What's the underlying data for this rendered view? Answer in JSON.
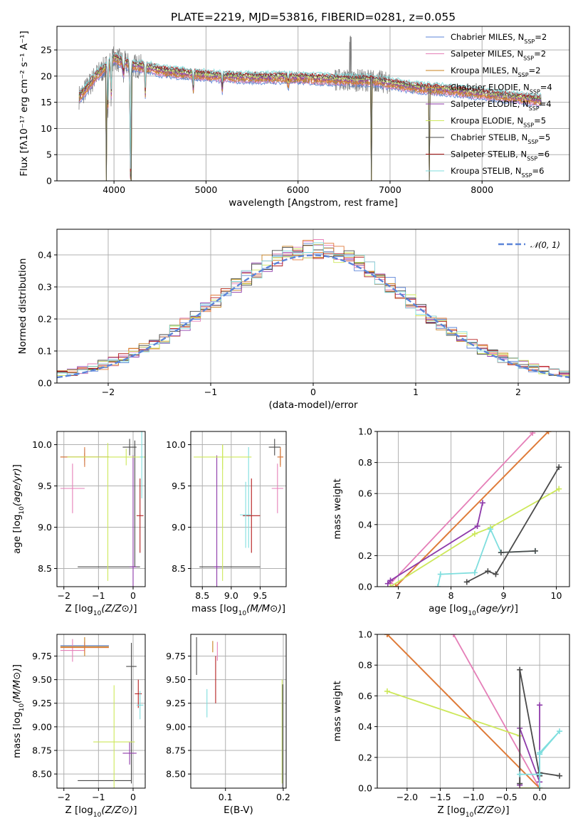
{
  "colors": {
    "Chabrier MILES": "#5b84d8",
    "Salpeter MILES": "#e57fb8",
    "Kroupa MILES": "#c8801e",
    "Chabrier ELODIE": "#e07a3a",
    "Salpeter ELODIE": "#8e3aaa",
    "Kroupa ELODIE": "#cde85a",
    "Chabrier STELIB": "#4a4a4a",
    "Salpeter STELIB": "#b41e1e",
    "Kroupa STELIB": "#7fdede"
  },
  "chart_data": [
    {
      "id": "spectrum",
      "type": "line",
      "title": "PLATE=2219, MJD=53816, FIBERID=0281, z=0.055",
      "xlabel": "wavelength [Angstrom, rest frame]",
      "ylabel": "Flux [fλ10⁻¹⁷ erg cm⁻² s⁻¹ A⁻¹]",
      "xlim": [
        3380,
        8950
      ],
      "ylim": [
        0,
        29.5
      ],
      "xticks": [
        4000,
        5000,
        6000,
        7000,
        8000
      ],
      "yticks": [
        0,
        5,
        10,
        15,
        20,
        25
      ],
      "data_series": {
        "name": "",
        "color": "#808080"
      },
      "continuum_x": [
        3620,
        3700,
        3800,
        3900,
        4000,
        4100,
        4200,
        4300,
        4400,
        4500,
        4700,
        5000,
        5300,
        5600,
        6000,
        6300,
        6600,
        6800,
        7000,
        7200,
        7400,
        7600,
        7800,
        8000,
        8200,
        8400,
        8600
      ],
      "continuum_y": [
        16.0,
        17.5,
        20.0,
        21.5,
        23.5,
        22.5,
        22.0,
        21.8,
        21.5,
        21.0,
        20.6,
        20.1,
        19.8,
        19.7,
        19.7,
        19.4,
        19.2,
        19.2,
        18.6,
        18.0,
        17.6,
        17.4,
        17.0,
        16.6,
        16.2,
        15.8,
        15.4
      ],
      "absorption_lines": [
        {
          "x": 3934,
          "depth": 8.0
        },
        {
          "x": 3969,
          "depth": 7.0
        },
        {
          "x": 4102,
          "depth": 3.0
        },
        {
          "x": 4178,
          "depth": 21.0
        },
        {
          "x": 4340,
          "depth": 5.0
        },
        {
          "x": 4861,
          "depth": 3.0
        },
        {
          "x": 5175,
          "depth": 2.5
        },
        {
          "x": 5893,
          "depth": 2.0
        }
      ],
      "model_gaps": [
        {
          "x": 3918,
          "bottom": 0
        },
        {
          "x": 4184,
          "bottom": 0
        },
        {
          "x": 6800,
          "bottom": 0
        },
        {
          "x": 7430,
          "bottom": 0
        }
      ],
      "legend": [
        {
          "name": "Chabrier MILES",
          "nssp": "2"
        },
        {
          "name": "Salpeter MILES",
          "nssp": "2"
        },
        {
          "name": "Kroupa MILES",
          "nssp": "2"
        },
        {
          "name": "Chabrier ELODIE",
          "nssp": "4"
        },
        {
          "name": "Salpeter ELODIE",
          "nssp": "4"
        },
        {
          "name": "Kroupa ELODIE",
          "nssp": "5"
        },
        {
          "name": "Chabrier STELIB",
          "nssp": "5"
        },
        {
          "name": "Salpeter STELIB",
          "nssp": "6"
        },
        {
          "name": "Kroupa STELIB",
          "nssp": "6"
        }
      ],
      "legend_prefix": "N",
      "legend_sub": "SSP"
    },
    {
      "id": "residuals",
      "type": "histogram",
      "xlabel": "(data-model)/error",
      "ylabel": "Normed distribution",
      "xlim": [
        -2.5,
        2.5
      ],
      "ylim": [
        0,
        0.48
      ],
      "xticks": [
        -2,
        -1,
        0,
        1,
        2
      ],
      "yticks": [
        0.0,
        0.1,
        0.2,
        0.3,
        0.4
      ],
      "bin_width": 0.1,
      "normal_legend": "𝒩(0, 1)",
      "normal_color": "#5b84d8"
    },
    {
      "id": "age-vs-Z",
      "type": "errorbar",
      "xlabel": "Z [log10(Z/Z⊙)]",
      "ylabel": "age  [log10(age/yr)]",
      "xlim": [
        -2.2,
        0.35
      ],
      "ylim": [
        8.28,
        10.16
      ],
      "xticks": [
        -2,
        -1,
        0
      ],
      "yticks": [
        8.5,
        9.0,
        9.5,
        10.0
      ],
      "points": [
        {
          "model": "Chabrier MILES",
          "x": -1.4,
          "xe": 0.7,
          "y": 9.85,
          "ye": 0.1
        },
        {
          "model": "Salpeter MILES",
          "x": -1.75,
          "xe": 0.35,
          "y": 9.47,
          "ye": 0.3
        },
        {
          "model": "Kroupa MILES",
          "x": -1.4,
          "xe": 0.7,
          "y": 9.85,
          "ye": 0.05
        },
        {
          "model": "Chabrier ELODIE",
          "x": -1.4,
          "xe": 0.7,
          "y": 9.85,
          "ye": 0.12
        },
        {
          "model": "Salpeter ELODIE",
          "x": 0.0,
          "xe": 0.1,
          "y": 8.52,
          "ye": 1.35
        },
        {
          "model": "Kroupa ELODIE",
          "x": -0.2,
          "xe": 1.7,
          "y": 9.85,
          "ye": 0.1
        },
        {
          "model": "Chabrier STELIB",
          "x": -0.1,
          "xe": 0.2,
          "y": 9.97,
          "ye": 0.1
        },
        {
          "model": "Salpeter STELIB",
          "x": 0.2,
          "xe": 0.1,
          "y": 9.14,
          "ye": 0.45
        },
        {
          "model": "Kroupa STELIB",
          "x": 0.25,
          "xe": 0.05,
          "y": 9.85,
          "ye": 0.5
        }
      ],
      "extra_segments": [
        {
          "model": "Chabrier STELIB",
          "x1": -1.6,
          "y1": 8.52,
          "x2": 0.2,
          "y2": 8.52
        },
        {
          "model": "Kroupa ELODIE",
          "x1": -0.73,
          "y1": 8.35,
          "x2": -0.73,
          "y2": 10.02
        },
        {
          "model": "Chabrier STELIB",
          "x1": 0.05,
          "y1": 8.52,
          "x2": 0.05,
          "y2": 10.05
        }
      ]
    },
    {
      "id": "age-vs-mass",
      "type": "errorbar",
      "xlabel": "mass [log10(M/M⊙)]",
      "ylabel": "",
      "xlim": [
        8.3,
        9.95
      ],
      "ylim": [
        8.28,
        10.16
      ],
      "xticks": [
        8.5,
        9.0,
        9.5
      ],
      "yticks": [
        8.5,
        9.0,
        9.5,
        10.0
      ],
      "points": [
        {
          "model": "Chabrier MILES",
          "x": 9.85,
          "xe": 0.05,
          "y": 9.85,
          "ye": 0.1
        },
        {
          "model": "Salpeter MILES",
          "x": 9.8,
          "xe": 0.1,
          "y": 9.47,
          "ye": 0.3
        },
        {
          "model": "Kroupa MILES",
          "x": 9.85,
          "xe": 0.05,
          "y": 9.85,
          "ye": 0.1
        },
        {
          "model": "Chabrier ELODIE",
          "x": 9.85,
          "xe": 0.05,
          "y": 9.85,
          "ye": 0.12
        },
        {
          "model": "Salpeter ELODIE",
          "x": 8.75,
          "xe": 0.05,
          "y": 8.52,
          "ye": 1.35
        },
        {
          "model": "Kroupa ELODIE",
          "x": 8.85,
          "xe": 0.5,
          "y": 9.85,
          "ye": 0.15
        },
        {
          "model": "Chabrier STELIB",
          "x": 9.75,
          "xe": 0.1,
          "y": 9.97,
          "ye": 0.1
        },
        {
          "model": "Salpeter STELIB",
          "x": 9.35,
          "xe": 0.15,
          "y": 9.14,
          "ye": 0.45
        },
        {
          "model": "Kroupa STELIB",
          "x": 9.25,
          "xe": 0.1,
          "y": 9.15,
          "ye": 0.4
        }
      ],
      "extra_segments": [
        {
          "model": "Chabrier STELIB",
          "x1": 8.45,
          "y1": 8.52,
          "x2": 9.5,
          "y2": 8.52
        },
        {
          "model": "Kroupa ELODIE",
          "x1": 8.85,
          "y1": 8.35,
          "x2": 8.85,
          "y2": 10.0
        },
        {
          "model": "Kroupa STELIB",
          "x1": 9.3,
          "y1": 8.75,
          "x2": 9.3,
          "y2": 9.97
        }
      ]
    },
    {
      "id": "weight-vs-age",
      "type": "line",
      "xlabel": "age  [log10(age/yr)]",
      "ylabel": "mass weight",
      "xlim": [
        6.6,
        10.25
      ],
      "ylim": [
        0,
        1.0
      ],
      "xticks": [
        7,
        8,
        9,
        10
      ],
      "yticks": [
        0.0,
        0.2,
        0.4,
        0.6,
        0.8,
        1.0
      ],
      "series": [
        {
          "model": "Salpeter MILES",
          "x": [
            6.85,
            9.55
          ],
          "y": [
            0.02,
            0.99
          ]
        },
        {
          "model": "Kroupa MILES",
          "x": [
            6.95,
            9.85
          ],
          "y": [
            0.0,
            1.0
          ]
        },
        {
          "model": "Chabrier ELODIE",
          "x": [
            6.95,
            9.85
          ],
          "y": [
            0.0,
            1.0
          ]
        },
        {
          "model": "Salpeter ELODIE",
          "x": [
            6.8,
            6.85,
            8.5,
            8.6
          ],
          "y": [
            0.02,
            0.04,
            0.39,
            0.54
          ]
        },
        {
          "model": "Kroupa ELODIE",
          "x": [
            6.85,
            8.45,
            8.75,
            10.05
          ],
          "y": [
            0.0,
            0.34,
            0.38,
            0.63
          ]
        },
        {
          "model": "Chabrier STELIB",
          "x": [
            8.3,
            8.7,
            8.85,
            10.05
          ],
          "y": [
            0.03,
            0.1,
            0.08,
            0.77
          ]
        },
        {
          "model": "Kroupa STELIB",
          "x": [
            7.75,
            7.8,
            8.45,
            8.75,
            8.95,
            9.6
          ],
          "y": [
            0.0,
            0.08,
            0.09,
            0.37,
            0.22,
            0.23
          ]
        },
        {
          "model": "Chabrier STELIB",
          "x": [
            8.95,
            9.6
          ],
          "y": [
            0.22,
            0.23
          ]
        }
      ]
    },
    {
      "id": "mass-vs-Z",
      "type": "errorbar",
      "xlabel": "Z [log10(Z/Z⊙)]",
      "ylabel": "mass [log10(M/M⊙)]",
      "xlim": [
        -2.2,
        0.35
      ],
      "ylim": [
        8.35,
        9.98
      ],
      "xticks": [
        -2,
        -1,
        0
      ],
      "yticks": [
        8.5,
        8.75,
        9.0,
        9.25,
        9.5,
        9.75
      ],
      "points": [
        {
          "model": "Chabrier MILES",
          "x": -1.4,
          "xe": 0.7,
          "y": 9.86,
          "ye": 0.04
        },
        {
          "model": "Salpeter MILES",
          "x": -1.75,
          "xe": 0.35,
          "y": 9.81,
          "ye": 0.12
        },
        {
          "model": "Kroupa MILES",
          "x": -1.4,
          "xe": 0.7,
          "y": 9.85,
          "ye": 0.1
        },
        {
          "model": "Chabrier ELODIE",
          "x": -1.4,
          "xe": 0.7,
          "y": 9.84,
          "ye": 0.06
        },
        {
          "model": "Salpeter ELODIE",
          "x": -0.1,
          "xe": 0.2,
          "y": 8.72,
          "ye": 0.12
        },
        {
          "model": "Kroupa ELODIE",
          "x": -0.55,
          "xe": 0.6,
          "y": 8.84,
          "ye": 0.6
        },
        {
          "model": "Chabrier STELIB",
          "x": -0.05,
          "xe": 0.15,
          "y": 9.64,
          "ye": 0.25
        },
        {
          "model": "Salpeter STELIB",
          "x": 0.15,
          "xe": 0.1,
          "y": 9.35,
          "ye": 0.15
        },
        {
          "model": "Kroupa STELIB",
          "x": 0.2,
          "xe": 0.1,
          "y": 9.23,
          "ye": 0.15
        }
      ],
      "extra_segments": [
        {
          "model": "Chabrier STELIB",
          "x1": -1.6,
          "y1": 8.43,
          "x2": -0.05,
          "y2": 8.43
        },
        {
          "model": "Chabrier STELIB",
          "x1": -0.05,
          "y1": 8.4,
          "x2": -0.05,
          "y2": 9.49
        }
      ]
    },
    {
      "id": "mass-vs-ebv",
      "type": "errorbar",
      "xlabel": "E(B-V)",
      "ylabel": "",
      "xlim": [
        0.04,
        0.205
      ],
      "ylim": [
        8.35,
        9.98
      ],
      "xticks": [
        0.1,
        0.2
      ],
      "yticks": [
        8.5,
        8.75,
        9.0,
        9.25,
        9.5,
        9.75
      ],
      "points": [
        {
          "model": "Chabrier STELIB",
          "x": 0.05,
          "xe": 0.0,
          "y": 9.75,
          "ye": 0.2
        },
        {
          "model": "Kroupa STELIB",
          "x": 0.068,
          "xe": 0.0,
          "y": 9.25,
          "ye": 0.15
        },
        {
          "model": "Kroupa MILES",
          "x": 0.078,
          "xe": 0.0,
          "y": 9.85,
          "ye": 0.06
        },
        {
          "model": "Salpeter STELIB",
          "x": 0.083,
          "xe": 0.0,
          "y": 9.5,
          "ye": 0.25
        },
        {
          "model": "Salpeter MILES",
          "x": 0.086,
          "xe": 0.0,
          "y": 9.8,
          "ye": 0.1
        },
        {
          "model": "Kroupa ELODIE",
          "x": 0.198,
          "xe": 0.0,
          "y": 8.95,
          "ye": 0.55
        },
        {
          "model": "Chabrier STELIB",
          "x": 0.199,
          "xe": 0.0,
          "y": 8.9,
          "ye": 0.55
        }
      ],
      "extra_segments": []
    },
    {
      "id": "weight-vs-Z",
      "type": "line",
      "xlabel": "Z [log10(Z/Z⊙)]",
      "ylabel": "mass weight",
      "xlim": [
        -2.45,
        0.45
      ],
      "ylim": [
        0,
        1.0
      ],
      "xticks": [
        -2.0,
        -1.5,
        -1.0,
        -0.5,
        0.0
      ],
      "yticks": [
        0.0,
        0.2,
        0.4,
        0.6,
        0.8,
        1.0
      ],
      "series": [
        {
          "model": "Salpeter MILES",
          "x": [
            -1.3,
            0.0
          ],
          "y": [
            1.0,
            0.0
          ]
        },
        {
          "model": "Kroupa MILES",
          "x": [
            -2.3,
            0.0
          ],
          "y": [
            1.0,
            0.0
          ]
        },
        {
          "model": "Chabrier ELODIE",
          "x": [
            -2.3,
            0.0
          ],
          "y": [
            1.0,
            0.0
          ]
        },
        {
          "model": "Kroupa ELODIE",
          "x": [
            -2.3,
            -0.3,
            -0.3,
            0.0
          ],
          "y": [
            0.63,
            0.34,
            0.0,
            0.0
          ]
        },
        {
          "model": "Salpeter ELODIE",
          "x": [
            -0.3,
            -0.3,
            0.0,
            0.0
          ],
          "y": [
            0.02,
            0.39,
            0.04,
            0.54
          ]
        },
        {
          "model": "Chabrier STELIB",
          "x": [
            -0.3,
            -0.3,
            0.0,
            0.0,
            0.3
          ],
          "y": [
            0.03,
            0.77,
            0.08,
            0.1,
            0.08
          ]
        },
        {
          "model": "Kroupa STELIB",
          "x": [
            -0.3,
            0.0,
            0.0,
            0.3,
            0.0,
            0.0
          ],
          "y": [
            0.09,
            0.09,
            0.22,
            0.37,
            0.23,
            0.0
          ]
        }
      ]
    }
  ]
}
